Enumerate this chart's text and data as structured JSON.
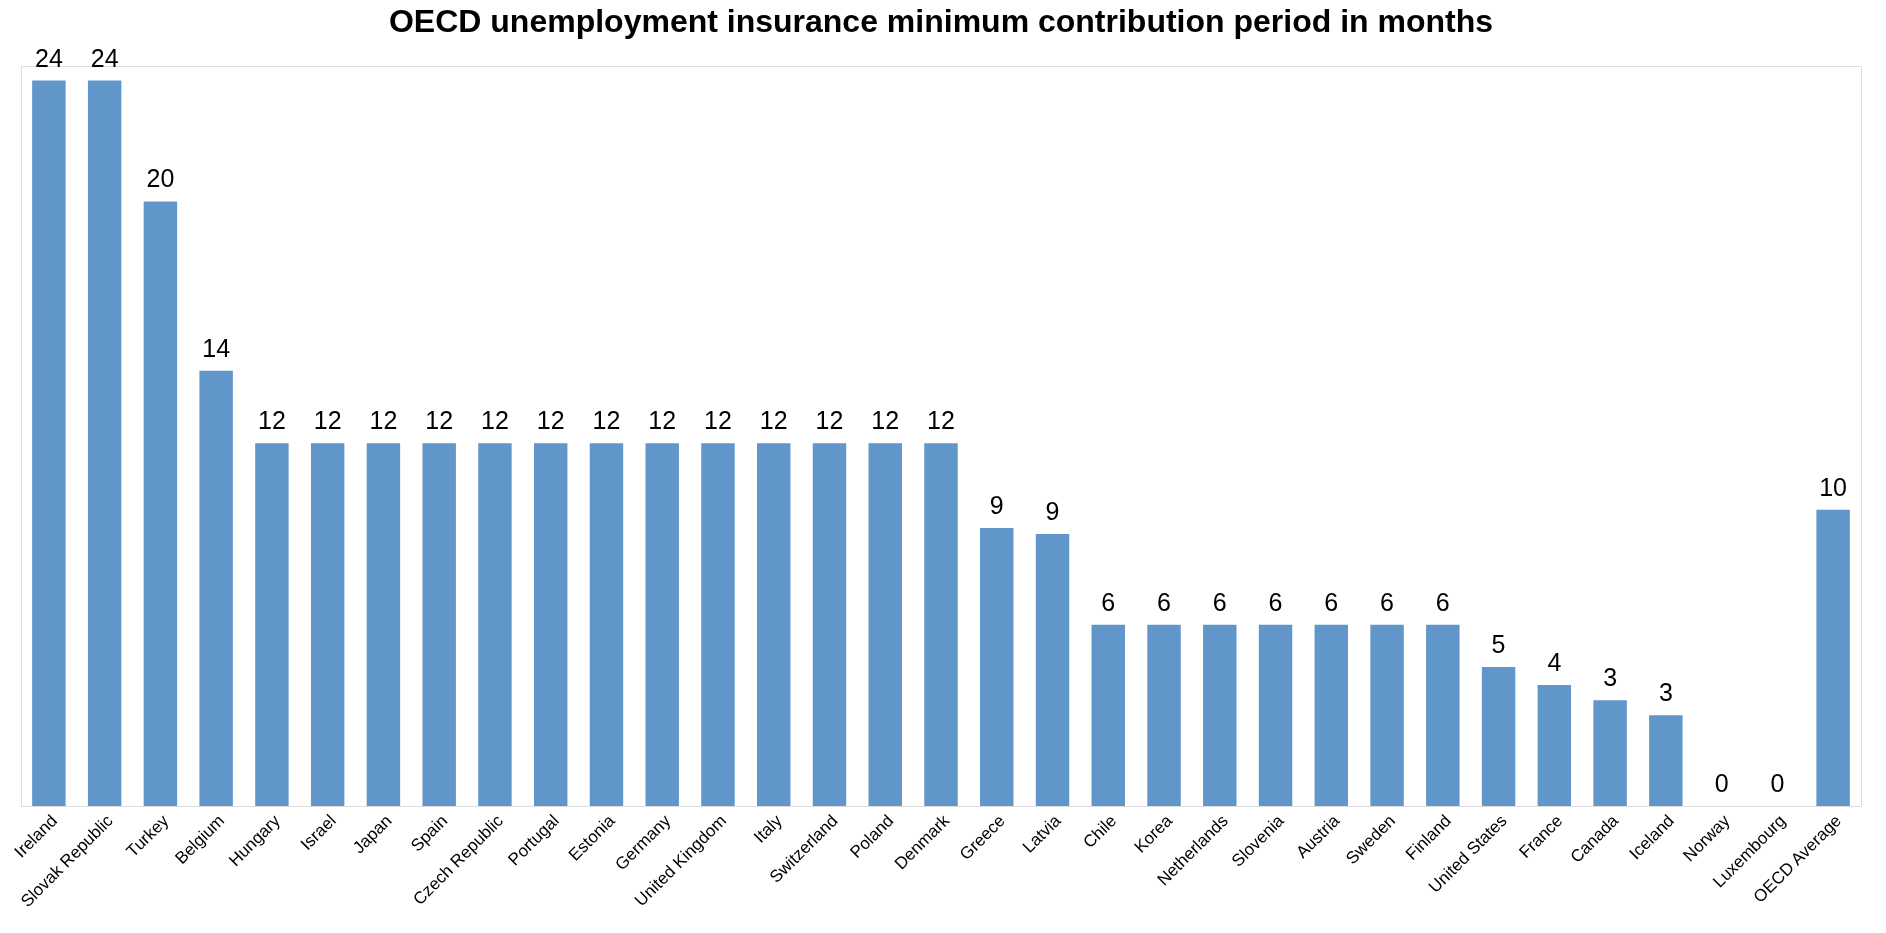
{
  "chart_data": {
    "type": "bar",
    "title": "OECD unemployment insurance minimum contribution period in months",
    "categories": [
      "Ireland",
      "Slovak Republic",
      "Turkey",
      "Belgium",
      "Hungary",
      "Israel",
      "Japan",
      "Spain",
      "Czech Republic",
      "Portugal",
      "Estonia",
      "Germany",
      "United Kingdom",
      "Italy",
      "Switzerland",
      "Poland",
      "Denmark",
      "Greece",
      "Latvia",
      "Chile",
      "Korea",
      "Netherlands",
      "Slovenia",
      "Austria",
      "Sweden",
      "Finland",
      "United States",
      "France",
      "Canada",
      "Iceland",
      "Norway",
      "Luxembourg",
      "OECD Average"
    ],
    "values": [
      24,
      24,
      20,
      14.4,
      12,
      12,
      12,
      12,
      12,
      12,
      12,
      12,
      12,
      12,
      12,
      12,
      12,
      9.2,
      9,
      6,
      6,
      6,
      6,
      6,
      6,
      6,
      4.6,
      4,
      3.5,
      3,
      0,
      0,
      9.8
    ],
    "value_labels": [
      "24",
      "24",
      "20",
      "14",
      "12",
      "12",
      "12",
      "12",
      "12",
      "12",
      "12",
      "12",
      "12",
      "12",
      "12",
      "12",
      "12",
      "9",
      "9",
      "6",
      "6",
      "6",
      "6",
      "6",
      "6",
      "6",
      "5",
      "4",
      "3",
      "3",
      "0",
      "0",
      "10"
    ],
    "color": "#6096c9"
  }
}
